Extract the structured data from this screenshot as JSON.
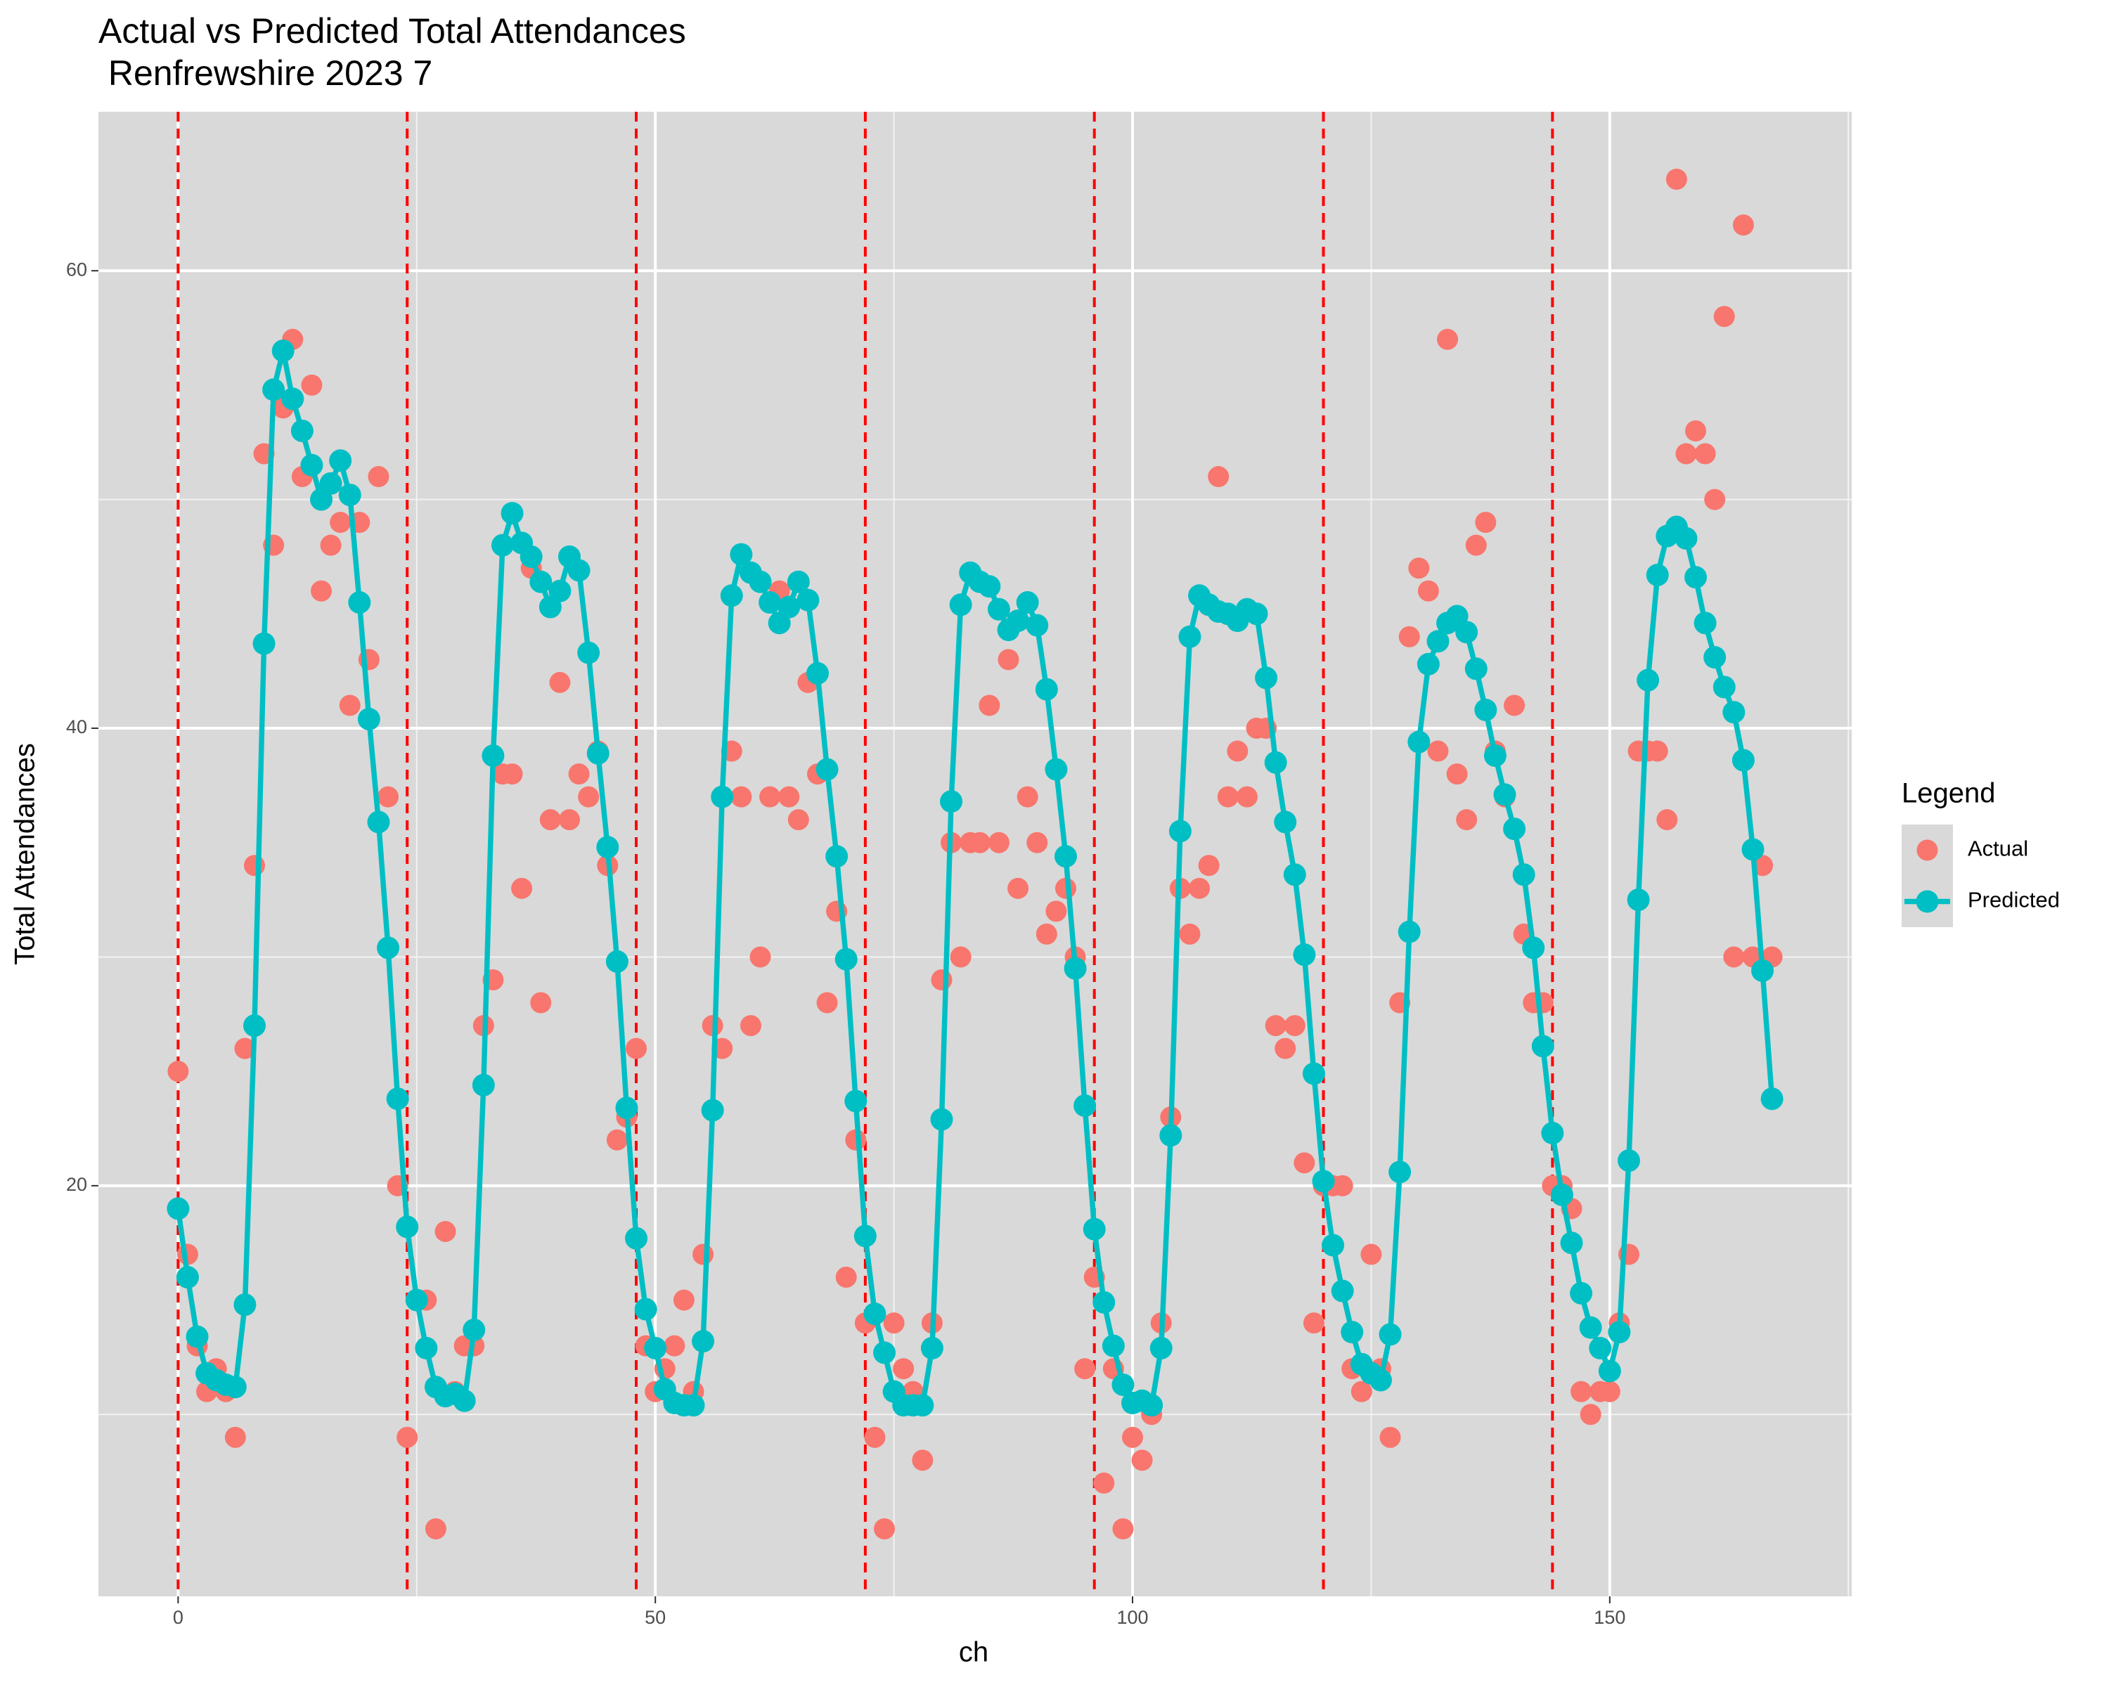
{
  "chart_data": {
    "type": "scatter",
    "title": "Actual vs Predicted Total Attendances\n Renfrewshire 2023 7",
    "x_label": "ch",
    "y_label": "Total Attendances",
    "legend_title": "Legend",
    "legend": "right",
    "xlim": [
      -8.35,
      175.35
    ],
    "xticks": [
      0,
      50,
      100,
      150
    ],
    "x_minor_grid": [
      25,
      75,
      125,
      175
    ],
    "ylim": [
      2.05,
      66.95
    ],
    "yticks": [
      20,
      40,
      60
    ],
    "y_minor_grid": [
      10,
      30,
      50
    ],
    "grid": true,
    "vlines": [
      0,
      24,
      48,
      72,
      96,
      120,
      144
    ],
    "vline_color": "#ff0000",
    "x": [
      0,
      1,
      2,
      3,
      4,
      5,
      6,
      7,
      8,
      9,
      10,
      11,
      12,
      13,
      14,
      15,
      16,
      17,
      18,
      19,
      20,
      21,
      22,
      23,
      24,
      25,
      26,
      27,
      28,
      29,
      30,
      31,
      32,
      33,
      34,
      35,
      36,
      37,
      38,
      39,
      40,
      41,
      42,
      43,
      44,
      45,
      46,
      47,
      48,
      49,
      50,
      51,
      52,
      53,
      54,
      55,
      56,
      57,
      58,
      59,
      60,
      61,
      62,
      63,
      64,
      65,
      66,
      67,
      68,
      69,
      70,
      71,
      72,
      73,
      74,
      75,
      76,
      77,
      78,
      79,
      80,
      81,
      82,
      83,
      84,
      85,
      86,
      87,
      88,
      89,
      90,
      91,
      92,
      93,
      94,
      95,
      96,
      97,
      98,
      99,
      100,
      101,
      102,
      103,
      104,
      105,
      106,
      107,
      108,
      109,
      110,
      111,
      112,
      113,
      114,
      115,
      116,
      117,
      118,
      119,
      120,
      121,
      122,
      123,
      124,
      125,
      126,
      127,
      128,
      129,
      130,
      131,
      132,
      133,
      134,
      135,
      136,
      137,
      138,
      139,
      140,
      141,
      142,
      143,
      144,
      145,
      146,
      147,
      148,
      149,
      150,
      151,
      152,
      153,
      154,
      155,
      156,
      157,
      158,
      159,
      160,
      161,
      162,
      163,
      164,
      165,
      166,
      167
    ],
    "series": [
      {
        "name": "Actual",
        "color": "#F8766D",
        "style": "points",
        "values": [
          25,
          17,
          13,
          11,
          12,
          11,
          9,
          26,
          34,
          52,
          48,
          54,
          57,
          51,
          55,
          46,
          48,
          49,
          41,
          49,
          43,
          51,
          37,
          20,
          9,
          15,
          15,
          5,
          18,
          11,
          13,
          13,
          27,
          29,
          38,
          38,
          33,
          47,
          28,
          36,
          42,
          36,
          38,
          37,
          39,
          34,
          22,
          23,
          26,
          13,
          11,
          12,
          13,
          15,
          11,
          17,
          27,
          26,
          39,
          37,
          27,
          30,
          37,
          46,
          37,
          36,
          42,
          38,
          28,
          32,
          16,
          22,
          14,
          9,
          5,
          14,
          12,
          11,
          8,
          14,
          29,
          35,
          30,
          35,
          35,
          41,
          35,
          43,
          33,
          37,
          35,
          31,
          32,
          33,
          30,
          12,
          16,
          7,
          12,
          5,
          9,
          8,
          10,
          14,
          23,
          33,
          31,
          33,
          34,
          51,
          37,
          39,
          37,
          40,
          40,
          27,
          26,
          27,
          21,
          14,
          20,
          20,
          20,
          12,
          11,
          17,
          12,
          9,
          28,
          44,
          47,
          46,
          39,
          57,
          38,
          36,
          48,
          49,
          39,
          37,
          41,
          31,
          28,
          28,
          20,
          20,
          19,
          11,
          10,
          11,
          11,
          14,
          17,
          39,
          39,
          39,
          36,
          64,
          52,
          53,
          52,
          50,
          58,
          30,
          62,
          30,
          34,
          30
        ]
      },
      {
        "name": "Predicted",
        "color": "#00BFC4",
        "style": "line+points",
        "values": [
          19.0,
          16.0,
          13.4,
          11.8,
          11.5,
          11.3,
          11.2,
          14.8,
          27.0,
          43.7,
          54.8,
          56.5,
          54.4,
          53.0,
          51.5,
          50.0,
          50.7,
          51.7,
          50.2,
          45.5,
          40.4,
          35.9,
          30.4,
          23.8,
          18.2,
          15.0,
          12.9,
          11.2,
          10.8,
          10.9,
          10.6,
          13.7,
          24.4,
          38.8,
          48.0,
          49.4,
          48.1,
          47.5,
          46.4,
          45.3,
          46.0,
          47.5,
          46.9,
          43.3,
          38.9,
          34.8,
          29.8,
          23.4,
          17.7,
          14.6,
          12.9,
          11.1,
          10.5,
          10.4,
          10.4,
          13.2,
          23.3,
          37.0,
          45.8,
          47.6,
          46.8,
          46.4,
          45.5,
          44.6,
          45.3,
          46.4,
          45.6,
          42.4,
          38.2,
          34.4,
          29.9,
          23.7,
          17.8,
          14.4,
          12.7,
          11.0,
          10.4,
          10.4,
          10.4,
          12.9,
          22.9,
          36.8,
          45.4,
          46.8,
          46.4,
          46.2,
          45.2,
          44.3,
          44.7,
          45.5,
          44.5,
          41.7,
          38.2,
          34.4,
          29.5,
          23.5,
          18.1,
          14.9,
          13.0,
          11.3,
          10.5,
          10.6,
          10.4,
          12.9,
          22.2,
          35.5,
          44.0,
          45.8,
          45.4,
          45.1,
          45.0,
          44.7,
          45.2,
          45.0,
          42.2,
          38.5,
          35.9,
          33.6,
          30.1,
          24.9,
          20.2,
          17.4,
          15.4,
          13.6,
          12.2,
          11.8,
          11.5,
          13.5,
          20.6,
          31.1,
          39.4,
          42.8,
          43.8,
          44.6,
          44.9,
          44.2,
          42.6,
          40.8,
          38.8,
          37.1,
          35.6,
          33.6,
          30.4,
          26.1,
          22.3,
          19.6,
          17.5,
          15.3,
          13.8,
          12.9,
          11.9,
          13.6,
          21.1,
          32.5,
          42.1,
          46.7,
          48.4,
          48.8,
          48.3,
          46.6,
          44.6,
          43.1,
          41.8,
          40.7,
          38.6,
          34.7,
          29.4,
          23.8
        ]
      }
    ]
  }
}
